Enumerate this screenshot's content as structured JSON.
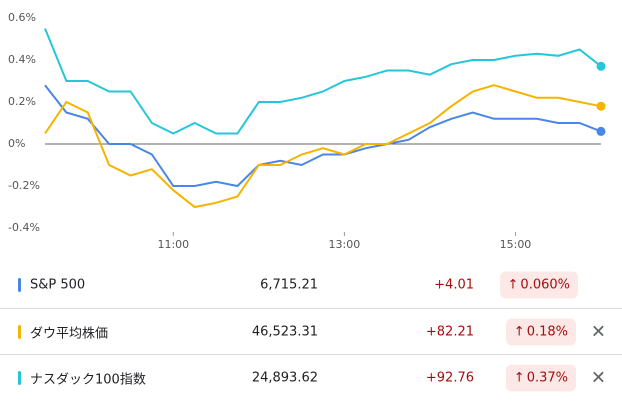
{
  "chart_data": {
    "type": "line",
    "x": [
      9.5,
      9.75,
      10,
      10.25,
      10.5,
      10.75,
      11,
      11.25,
      11.5,
      11.75,
      12,
      12.25,
      12.5,
      12.75,
      13,
      13.25,
      13.5,
      13.75,
      14,
      14.25,
      14.5,
      14.75,
      15,
      15.25,
      15.5,
      15.75,
      16
    ],
    "xlim": [
      9.5,
      16
    ],
    "xticks": [
      {
        "value": 11,
        "label": "11:00"
      },
      {
        "value": 13,
        "label": "13:00"
      },
      {
        "value": 15,
        "label": "15:00"
      }
    ],
    "ylim": [
      -0.4,
      0.6
    ],
    "yticks": [
      {
        "value": 0.6,
        "label": "0.6%"
      },
      {
        "value": 0.4,
        "label": "0.4%"
      },
      {
        "value": 0.2,
        "label": "0.2%"
      },
      {
        "value": 0,
        "label": "0%"
      },
      {
        "value": -0.2,
        "label": "-0.2%"
      },
      {
        "value": -0.4,
        "label": "-0.4%"
      }
    ],
    "zero_line": true,
    "series": [
      {
        "name": "S&P 500",
        "color": "#4a86e8",
        "values": [
          0.28,
          0.15,
          0.12,
          0,
          0,
          -0.05,
          -0.2,
          -0.2,
          -0.18,
          -0.2,
          -0.1,
          -0.08,
          -0.1,
          -0.05,
          -0.05,
          -0.02,
          0,
          0.02,
          0.08,
          0.12,
          0.15,
          0.12,
          0.12,
          0.12,
          0.1,
          0.1,
          0.06
        ]
      },
      {
        "name": "ダウ平均株価",
        "color": "#f4b400",
        "values": [
          0.05,
          0.2,
          0.15,
          -0.1,
          -0.15,
          -0.12,
          -0.22,
          -0.3,
          -0.28,
          -0.25,
          -0.1,
          -0.1,
          -0.05,
          -0.02,
          -0.05,
          0,
          0,
          0.05,
          0.1,
          0.18,
          0.25,
          0.28,
          0.25,
          0.22,
          0.22,
          0.2,
          0.18
        ]
      },
      {
        "name": "ナスダック100指数",
        "color": "#26c6da",
        "values": [
          0.55,
          0.3,
          0.3,
          0.25,
          0.25,
          0.1,
          0.05,
          0.1,
          0.05,
          0.05,
          0.2,
          0.2,
          0.22,
          0.25,
          0.3,
          0.32,
          0.35,
          0.35,
          0.33,
          0.38,
          0.4,
          0.4,
          0.42,
          0.43,
          0.42,
          0.45,
          0.37
        ]
      }
    ]
  },
  "table": {
    "rows": [
      {
        "price": "6,715.21",
        "change": "+4.01",
        "percent": "0.060%"
      },
      {
        "price": "46,523.31",
        "change": "+82.21",
        "percent": "0.18%"
      },
      {
        "price": "24,893.62",
        "change": "+92.76",
        "percent": "0.37%"
      }
    ]
  }
}
